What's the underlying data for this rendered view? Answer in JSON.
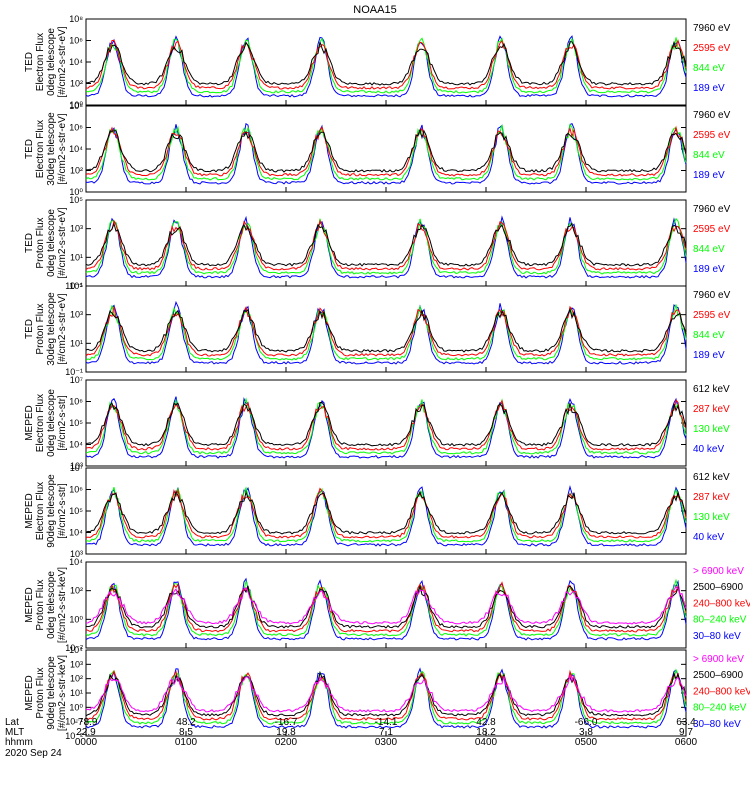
{
  "title": "NOAA15",
  "colors": {
    "blue": "#0000ff",
    "red": "#ff0000",
    "green": "#00ff00",
    "black": "#000000",
    "magenta": "#ff00ff"
  },
  "chart_data": [
    {
      "type": "line",
      "panel": 1,
      "ylabel": [
        "TED",
        "Electron Flux",
        "0deg telescope",
        "[#/cm2-s-str-eV]"
      ],
      "ytick_labels": [
        "10⁰",
        "10²",
        "10⁴",
        "10⁶",
        "10⁸"
      ],
      "legend": [
        {
          "label": "7960 eV",
          "color": "black"
        },
        {
          "label": "2595 eV",
          "color": "red"
        },
        {
          "label": "844 eV",
          "color": "green"
        },
        {
          "label": "189 eV",
          "color": "blue"
        }
      ]
    },
    {
      "type": "line",
      "panel": 2,
      "ylabel": [
        "TED",
        "Electron Flux",
        "30deg telescope",
        "[#/cm2-s-str-eV]"
      ],
      "ytick_labels": [
        "10⁰",
        "10²",
        "10⁴",
        "10⁶",
        "10⁸"
      ],
      "legend": [
        {
          "label": "7960 eV",
          "color": "black"
        },
        {
          "label": "2595 eV",
          "color": "red"
        },
        {
          "label": "844 eV",
          "color": "green"
        },
        {
          "label": "189 eV",
          "color": "blue"
        }
      ]
    },
    {
      "type": "line",
      "panel": 3,
      "ylabel": [
        "TED",
        "Proton Flux",
        "0deg telescope",
        "[#/cm2-s-str-eV]"
      ],
      "ytick_labels": [
        "10⁻¹",
        "10¹",
        "10³",
        "10⁵"
      ],
      "legend": [
        {
          "label": "7960 eV",
          "color": "black"
        },
        {
          "label": "2595 eV",
          "color": "red"
        },
        {
          "label": "844 eV",
          "color": "green"
        },
        {
          "label": "189 eV",
          "color": "blue"
        }
      ]
    },
    {
      "type": "line",
      "panel": 4,
      "ylabel": [
        "TED",
        "Proton Flux",
        "30deg telescope",
        "[#/cm2-s-str-eV]"
      ],
      "ytick_labels": [
        "10⁻¹",
        "10¹",
        "10³",
        "10⁵"
      ],
      "legend": [
        {
          "label": "7960 eV",
          "color": "black"
        },
        {
          "label": "2595 eV",
          "color": "red"
        },
        {
          "label": "844 eV",
          "color": "green"
        },
        {
          "label": "189 eV",
          "color": "blue"
        }
      ]
    },
    {
      "type": "line",
      "panel": 5,
      "ylabel": [
        "MEPED",
        "Electron Flux",
        "0deg telescope",
        "[#/cm2-s-str]"
      ],
      "ytick_labels": [
        "10³",
        "10⁴",
        "10⁵",
        "10⁶",
        "10⁷"
      ],
      "legend": [
        {
          "label": "612 keV",
          "color": "black"
        },
        {
          "label": "287 keV",
          "color": "red"
        },
        {
          "label": "130 keV",
          "color": "green"
        },
        {
          "label": "40 keV",
          "color": "blue"
        }
      ]
    },
    {
      "type": "line",
      "panel": 6,
      "ylabel": [
        "MEPED",
        "Electron Flux",
        "90deg telescope",
        "[#/cm2-s-str]"
      ],
      "ytick_labels": [
        "10³",
        "10⁴",
        "10⁵",
        "10⁶",
        "10⁷"
      ],
      "legend": [
        {
          "label": "612 keV",
          "color": "black"
        },
        {
          "label": "287 keV",
          "color": "red"
        },
        {
          "label": "130 keV",
          "color": "green"
        },
        {
          "label": "40 keV",
          "color": "blue"
        }
      ]
    },
    {
      "type": "line",
      "panel": 7,
      "ylabel": [
        "MEPED",
        "Proton Flux",
        "0deg telescope",
        "[#/cm2-s-str-keV]"
      ],
      "ytick_labels": [
        "10⁻²",
        "10⁰",
        "10²",
        "10⁴"
      ],
      "legend": [
        {
          "label": "> 6900 keV",
          "color": "magenta"
        },
        {
          "label": "2500–6900",
          "color": "black"
        },
        {
          "label": "240–800 keV",
          "color": "red"
        },
        {
          "label": "80–240 keV",
          "color": "green"
        },
        {
          "label": "30–80 keV",
          "color": "blue"
        }
      ]
    },
    {
      "type": "line",
      "panel": 8,
      "ylabel": [
        "MEPED",
        "Proton Flux",
        "90deg telescope",
        "[#/cm2-s-str-keV]"
      ],
      "ytick_labels": [
        "10⁻²",
        "10⁻¹",
        "10⁰",
        "10¹",
        "10²",
        "10³",
        "10⁴"
      ],
      "legend": [
        {
          "label": "> 6900 keV",
          "color": "magenta"
        },
        {
          "label": "2500–6900",
          "color": "black"
        },
        {
          "label": "240–800 keV",
          "color": "red"
        },
        {
          "label": "80–240 keV",
          "color": "green"
        },
        {
          "label": "30–80 keV",
          "color": "blue"
        }
      ]
    }
  ],
  "x_axis": {
    "row_labels": [
      "Lat",
      "MLT",
      "hhmm"
    ],
    "date": "2020 Sep 24",
    "ticks": [
      {
        "hour": 0,
        "lat": "-78.9",
        "mlt": "22.9",
        "hhmm": "0000"
      },
      {
        "hour": 1,
        "lat": "48.2",
        "mlt": "8.5",
        "hhmm": "0100"
      },
      {
        "hour": 2,
        "lat": "-16.7",
        "mlt": "19.8",
        "hhmm": "0200"
      },
      {
        "hour": 3,
        "lat": "-14.1",
        "mlt": "7.1",
        "hhmm": "0300"
      },
      {
        "hour": 4,
        "lat": "42.8",
        "mlt": "18.2",
        "hhmm": "0400"
      },
      {
        "hour": 5,
        "lat": "-66.0",
        "mlt": "3.8",
        "hhmm": "0500"
      },
      {
        "hour": 6,
        "lat": "63.4",
        "mlt": "9.7",
        "hhmm": "0600"
      }
    ],
    "xlim": [
      0,
      6
    ]
  }
}
